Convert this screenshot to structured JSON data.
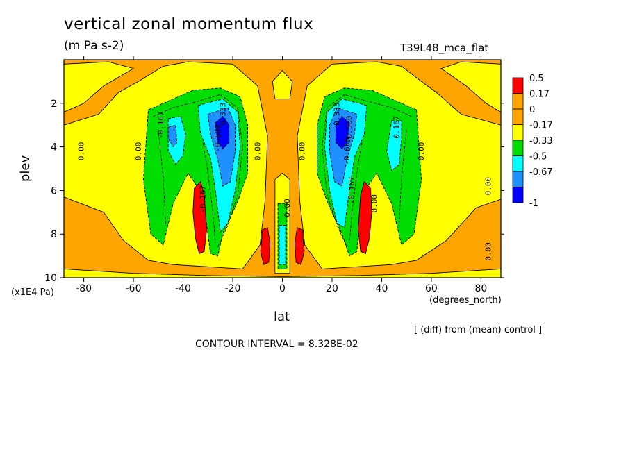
{
  "chart_data": {
    "type": "heatmap",
    "title": "vertical zonal momentum flux",
    "units": "(m Pa s-2)",
    "run_name": "T39L48_mca_flat",
    "xlabel": "lat",
    "xunits": "(degrees_north)",
    "ylabel": "plev",
    "yunits": "(x1E4 Pa)",
    "note": "[ (diff) from (mean) control ]",
    "contour_interval": "CONTOUR INTERVAL = 8.328E-02",
    "xlim": [
      -88,
      88
    ],
    "ylim": [
      10,
      0
    ],
    "x_ticks": [
      -80,
      -60,
      -40,
      -20,
      0,
      20,
      40,
      60,
      80
    ],
    "x_tick_labels": [
      "-80",
      "-60",
      "-40",
      "-20",
      "0",
      "20",
      "40",
      "60",
      "80"
    ],
    "y_ticks": [
      2,
      4,
      6,
      8,
      10
    ],
    "y_tick_labels": [
      "2",
      "4",
      "6",
      "8",
      "10"
    ],
    "legend": {
      "labels": [
        "0.5",
        "0.17",
        "0",
        "-0.17",
        "-0.33",
        "-0.5",
        "-0.67",
        "-1"
      ],
      "colors": [
        "#ff0000",
        "#ffa500",
        "#ffa500",
        "#ffff00",
        "#00dd00",
        "#00ffff",
        "#1e90ff",
        "#0000ff"
      ]
    },
    "level_colors": {
      "pos_high": "#ff0000",
      "pos": "#ffa500",
      "neg_small": "#ffff00",
      "neg_mid": "#00dd00",
      "neg_large": "#00ffff",
      "neg_xlarge": "#1e90ff",
      "neg_max": "#0000ff"
    },
    "features": [
      {
        "kind": "minimum",
        "lat": -25,
        "plev": 3.2,
        "value": -0.8
      },
      {
        "kind": "minimum",
        "lat": 25,
        "plev": 3.2,
        "value": -0.8
      },
      {
        "kind": "minimum",
        "lat": -43,
        "plev": 3.8,
        "value": -0.5
      },
      {
        "kind": "minimum",
        "lat": 46,
        "plev": 3.8,
        "value": -0.5
      },
      {
        "kind": "maximum",
        "lat": -33,
        "plev": 7.2,
        "value": 0.6
      },
      {
        "kind": "maximum",
        "lat": 33,
        "plev": 7.2,
        "value": 0.6
      },
      {
        "kind": "maximum",
        "lat": -7,
        "plev": 8.8,
        "value": 0.6
      },
      {
        "kind": "maximum",
        "lat": 7,
        "plev": 8.8,
        "value": 0.6
      },
      {
        "kind": "minimum",
        "lat": 0,
        "plev": 8.6,
        "value": -0.5
      }
    ],
    "contour_labels": [
      {
        "text": "0.00",
        "lat": -80,
        "plev": 4.2
      },
      {
        "text": "0.00",
        "lat": -57,
        "plev": 4.2
      },
      {
        "text": "-0.167",
        "lat": -48,
        "plev": 3.0
      },
      {
        "text": "-0.333",
        "lat": -23,
        "plev": 2.6
      },
      {
        "text": "-0.500",
        "lat": -25,
        "plev": 3.6
      },
      {
        "text": "0.00",
        "lat": -9,
        "plev": 4.2
      },
      {
        "text": "-0.167",
        "lat": -31,
        "plev": 6.4
      },
      {
        "text": "0.00",
        "lat": 9,
        "plev": 4.2
      },
      {
        "text": "0.00",
        "lat": 3,
        "plev": 6.8
      },
      {
        "text": "-0.333",
        "lat": 23,
        "plev": 2.6
      },
      {
        "text": "-0.500",
        "lat": 28,
        "plev": 3.2
      },
      {
        "text": "-0.666",
        "lat": 27,
        "plev": 4.2
      },
      {
        "text": "-0.167",
        "lat": 29,
        "plev": 6.0
      },
      {
        "text": "0.00",
        "lat": 38,
        "plev": 6.6
      },
      {
        "text": "-0.167",
        "lat": 47,
        "plev": 3.2
      },
      {
        "text": "0.00",
        "lat": 57,
        "plev": 4.2
      },
      {
        "text": "0.00",
        "lat": 84,
        "plev": 5.8
      },
      {
        "text": "0.00",
        "lat": 84,
        "plev": 8.8
      }
    ]
  }
}
